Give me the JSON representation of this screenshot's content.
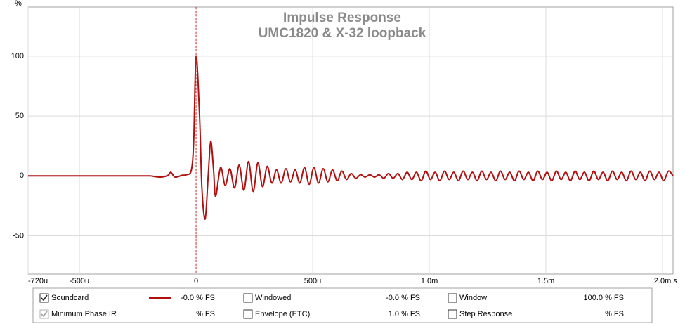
{
  "chart_data": {
    "type": "line",
    "title": "Impulse Response",
    "subtitle": "UMC1820 & X-32 loopback",
    "xlabel": "s",
    "ylabel": "%",
    "xlim": [
      -0.00072,
      0.002045
    ],
    "ylim": [
      -82,
      141
    ],
    "xticks": [
      {
        "value": -0.00072,
        "label": "-720u"
      },
      {
        "value": -0.0005,
        "label": "-500u"
      },
      0,
      {
        "value": 0.0005,
        "label": "500u"
      },
      {
        "value": 0.001,
        "label": "1.0m"
      },
      {
        "value": 0.0015,
        "label": "1.5m"
      },
      {
        "value": 0.002,
        "label": "2.0m"
      }
    ],
    "yticks": [
      -50,
      0,
      50,
      100
    ],
    "grid": true,
    "marker_x": 0,
    "marker_color": "#d03030",
    "x": [
      -0.00072,
      -0.0002,
      -0.00018,
      -0.00015,
      -0.00012,
      -0.000108,
      -9e-05,
      -6e-05,
      -4e-05,
      -2e-05,
      -1e-05,
      0,
      1.5e-05,
      2.5e-05,
      3.9e-05,
      5.2e-05,
      6.3e-05,
      7.5e-05,
      8.4e-05,
      0.000105,
      0.000125,
      0.000145,
      0.000165,
      0.000185,
      0.000205,
      0.000225,
      0.000245,
      0.000265,
      0.000285,
      0.000305,
      0.000325,
      0.000345,
      0.000365,
      0.000385,
      0.000405,
      0.000425,
      0.000445,
      0.000465,
      0.000485,
      0.000505,
      0.000525,
      0.000545,
      0.000565,
      0.000585,
      0.000605,
      0.000625,
      0.000645,
      0.000665,
      0.000685,
      0.000705,
      0.000725,
      0.000745,
      0.000765,
      0.000785,
      0.000805,
      0.000825,
      0.000845,
      0.000865,
      0.000885,
      0.000905,
      0.000925,
      0.000945,
      0.000965,
      0.000985,
      0.001005,
      0.001025,
      0.001045,
      0.001065,
      0.001085,
      0.001105,
      0.001125,
      0.001145,
      0.001165,
      0.001185,
      0.001205,
      0.001225,
      0.001245,
      0.001265,
      0.001285,
      0.001305,
      0.001325,
      0.001345,
      0.001365,
      0.001385,
      0.001405,
      0.001425,
      0.001445,
      0.001465,
      0.001485,
      0.001505,
      0.001525,
      0.001545,
      0.001565,
      0.001585,
      0.001605,
      0.001625,
      0.001645,
      0.001665,
      0.001685,
      0.001705,
      0.001725,
      0.001745,
      0.001765,
      0.001785,
      0.001805,
      0.001825,
      0.001845,
      0.001865,
      0.001885,
      0.001905,
      0.001925,
      0.001945,
      0.001965,
      0.001985,
      0.002005,
      0.002025,
      0.002045
    ],
    "series": [
      {
        "name": "Soundcard",
        "color": "#b01010",
        "values": [
          0,
          0,
          -0.5,
          -1,
          0.5,
          3,
          -1,
          0.5,
          1,
          5,
          30,
          100,
          50,
          -10,
          -36,
          0,
          29,
          5,
          -17,
          7,
          -8,
          6,
          -10,
          9,
          -12,
          12,
          -13,
          11,
          -9,
          8,
          -6,
          5,
          -6,
          6,
          -5,
          5,
          -6,
          7,
          -7,
          7,
          -6,
          6,
          -5,
          5,
          -4,
          4,
          -3,
          2,
          -2,
          1,
          -1,
          1,
          -1,
          1,
          -2,
          2,
          -2,
          2,
          -3,
          3,
          -3,
          3,
          -4,
          4,
          -3,
          3,
          -4,
          4,
          -3,
          3,
          -4,
          4,
          -3,
          3,
          -4,
          4,
          -3,
          3,
          -4,
          4,
          -3,
          3,
          -4,
          4,
          -3,
          3,
          -4,
          4,
          -3,
          3,
          -4,
          4,
          -3,
          3,
          -4,
          4,
          -3,
          3,
          -4,
          4,
          -3,
          3,
          -4,
          4,
          -3,
          3,
          -4,
          4,
          -3,
          3,
          -4,
          4,
          -3,
          3,
          -4,
          4,
          0
        ]
      }
    ],
    "legend_panel": [
      {
        "label": "Soundcard",
        "value": "-0.0 % FS",
        "checked": true,
        "color": "#b01010"
      },
      {
        "label": "Windowed",
        "value": "-0.0 % FS",
        "checked": false,
        "color": "#c00000"
      },
      {
        "label": "Window",
        "value": "100.0 % FS",
        "checked": false,
        "color": "#0000b0"
      },
      {
        "label": "Minimum Phase IR",
        "value": "% FS",
        "checked": true,
        "color": "#a0a0a0"
      },
      {
        "label": "Envelope (ETC)",
        "value": "1.0 % FS",
        "checked": false,
        "color": "#000000"
      },
      {
        "label": "Step Response",
        "value": "% FS",
        "checked": false,
        "color": "#000000"
      }
    ]
  }
}
